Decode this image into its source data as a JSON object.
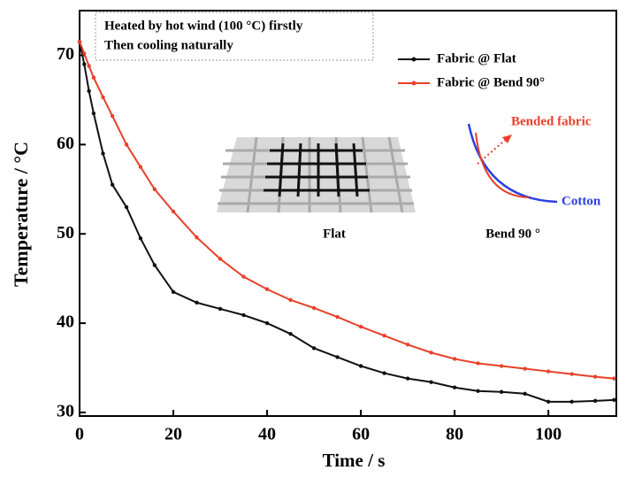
{
  "chart_data": {
    "type": "line",
    "xlabel": "Time / s",
    "ylabel": "Temperature / °C",
    "annotations": {
      "box": [
        "Heated by hot wind (100 °C) firstly",
        "Then cooling naturally"
      ],
      "bended": "Bended fabric",
      "cotton": "Cotton",
      "flat": "Flat",
      "bend": "Bend  90 °"
    },
    "x": [
      0,
      1,
      2,
      3,
      5,
      7,
      10,
      13,
      16,
      20,
      25,
      30,
      35,
      40,
      45,
      50,
      55,
      60,
      65,
      70,
      75,
      80,
      85,
      90,
      95,
      100,
      105,
      110,
      114
    ],
    "series": [
      {
        "name": "Fabric @ Flat",
        "color": "#111111",
        "values": [
          71.5,
          69,
          66,
          63.5,
          59,
          55.5,
          53,
          49.5,
          46.5,
          43.5,
          42.3,
          41.6,
          40.9,
          40,
          38.8,
          37.2,
          36.2,
          35.2,
          34.4,
          33.8,
          33.4,
          32.8,
          32.4,
          32.3,
          32.1,
          31.2,
          31.2,
          31.3,
          31.4
        ]
      },
      {
        "name": "Fabric @ Bend 90°",
        "color": "#e8402a",
        "values": [
          71.5,
          70.2,
          68.8,
          67.5,
          65.3,
          63.2,
          60,
          57.5,
          55,
          52.5,
          49.6,
          47.2,
          45.2,
          43.8,
          42.6,
          41.7,
          40.7,
          39.6,
          38.6,
          37.6,
          36.7,
          36,
          35.5,
          35.2,
          34.9,
          34.6,
          34.3,
          34,
          33.8
        ]
      }
    ],
    "xlim": [
      0,
      114.5
    ],
    "xticks": [
      0,
      20,
      40,
      60,
      80,
      100
    ],
    "ylim": [
      29.6,
      75
    ],
    "yticks": [
      30,
      40,
      50,
      60,
      70
    ],
    "legend": "upper right"
  }
}
